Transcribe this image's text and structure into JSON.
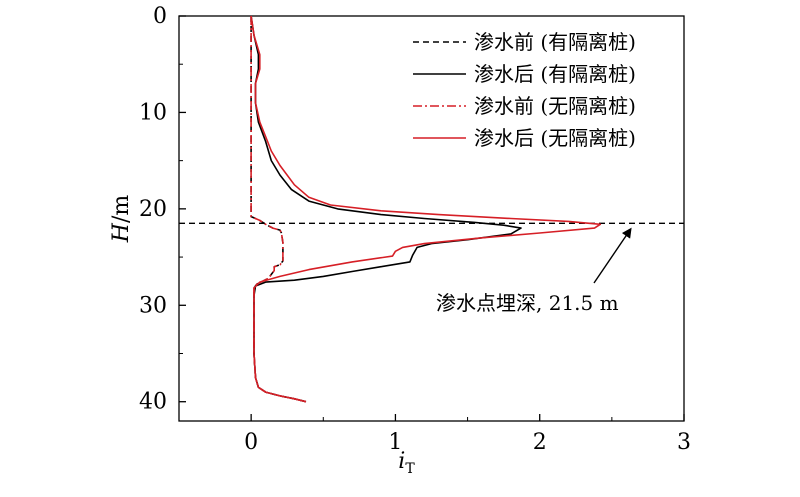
{
  "chart_data": {
    "type": "line",
    "title": "",
    "xlabel": {
      "main": "i",
      "sub": "T"
    },
    "ylabel": {
      "main": "H",
      "unit": "/m"
    },
    "xlim": [
      -0.5,
      3
    ],
    "ylim": [
      0,
      42
    ],
    "y_inverted": true,
    "xticks": [
      0,
      1,
      2,
      3
    ],
    "yticks": [
      0,
      10,
      20,
      30,
      40
    ],
    "grid": false,
    "legend_position": "top-right",
    "series": [
      {
        "name": "渗水前 (有隔离桩)",
        "color": "#000000",
        "dash": "dashed",
        "points": [
          [
            0.0,
            0
          ],
          [
            0.0,
            5
          ],
          [
            0.0,
            10
          ],
          [
            0.0,
            15
          ],
          [
            0.0,
            20
          ],
          [
            0.0,
            20.8
          ],
          [
            0.06,
            21.2
          ],
          [
            0.1,
            21.6
          ],
          [
            0.15,
            22.0
          ],
          [
            0.2,
            22.2
          ],
          [
            0.21,
            22.5
          ],
          [
            0.22,
            23.5
          ],
          [
            0.22,
            24.5
          ],
          [
            0.22,
            25.4
          ],
          [
            0.2,
            25.8
          ],
          [
            0.16,
            26.0
          ],
          [
            0.16,
            26.4
          ],
          [
            0.14,
            26.8
          ],
          [
            0.12,
            27.2
          ],
          [
            0.08,
            27.5
          ],
          [
            0.04,
            27.8
          ],
          [
            0.02,
            28.2
          ],
          [
            0.02,
            29
          ],
          [
            0.02,
            32
          ],
          [
            0.02,
            35
          ],
          [
            0.03,
            37.5
          ],
          [
            0.05,
            38.5
          ],
          [
            0.1,
            39.0
          ],
          [
            0.2,
            39.4
          ],
          [
            0.3,
            39.7
          ],
          [
            0.38,
            40.0
          ]
        ]
      },
      {
        "name": "渗水后 (有隔离桩)",
        "color": "#000000",
        "dash": "solid",
        "points": [
          [
            0.0,
            0
          ],
          [
            0.02,
            2
          ],
          [
            0.05,
            4
          ],
          [
            0.05,
            5.5
          ],
          [
            0.03,
            7
          ],
          [
            0.03,
            9
          ],
          [
            0.05,
            11
          ],
          [
            0.1,
            13
          ],
          [
            0.14,
            15
          ],
          [
            0.2,
            16.5
          ],
          [
            0.28,
            18
          ],
          [
            0.4,
            19.2
          ],
          [
            0.6,
            20.0
          ],
          [
            0.9,
            20.6
          ],
          [
            1.2,
            21.0
          ],
          [
            1.55,
            21.4
          ],
          [
            1.75,
            21.7
          ],
          [
            1.87,
            22.0
          ],
          [
            1.8,
            22.6
          ],
          [
            1.5,
            23.2
          ],
          [
            1.25,
            23.6
          ],
          [
            1.15,
            24.0
          ],
          [
            1.12,
            24.8
          ],
          [
            1.1,
            25.5
          ],
          [
            0.9,
            26.0
          ],
          [
            0.7,
            26.5
          ],
          [
            0.5,
            27.0
          ],
          [
            0.3,
            27.4
          ],
          [
            0.1,
            27.6
          ],
          [
            0.03,
            28.0
          ],
          [
            0.02,
            29
          ],
          [
            0.02,
            32
          ],
          [
            0.02,
            35
          ],
          [
            0.03,
            37.5
          ],
          [
            0.05,
            38.5
          ],
          [
            0.1,
            39.0
          ],
          [
            0.2,
            39.4
          ],
          [
            0.3,
            39.7
          ],
          [
            0.38,
            40.0
          ]
        ]
      },
      {
        "name": "渗水前 (无隔离桩)",
        "color": "#d61f26",
        "dash": "dashdot",
        "points": [
          [
            0.0,
            0
          ],
          [
            0.0,
            5
          ],
          [
            0.0,
            10
          ],
          [
            0.0,
            15
          ],
          [
            0.0,
            20
          ],
          [
            0.0,
            20.8
          ],
          [
            0.06,
            21.2
          ],
          [
            0.1,
            21.6
          ],
          [
            0.15,
            22.0
          ],
          [
            0.2,
            22.2
          ],
          [
            0.21,
            22.5
          ],
          [
            0.22,
            23.5
          ],
          [
            0.22,
            24.5
          ],
          [
            0.22,
            25.4
          ],
          [
            0.2,
            25.8
          ],
          [
            0.16,
            26.0
          ],
          [
            0.16,
            26.4
          ],
          [
            0.14,
            26.8
          ],
          [
            0.12,
            27.2
          ],
          [
            0.08,
            27.5
          ],
          [
            0.04,
            27.8
          ],
          [
            0.02,
            28.2
          ],
          [
            0.02,
            29
          ],
          [
            0.02,
            32
          ],
          [
            0.02,
            35
          ],
          [
            0.03,
            37.5
          ],
          [
            0.05,
            38.5
          ],
          [
            0.1,
            39.0
          ],
          [
            0.2,
            39.4
          ],
          [
            0.3,
            39.7
          ],
          [
            0.38,
            40.0
          ]
        ]
      },
      {
        "name": "渗水后 (无隔离桩)",
        "color": "#d61f26",
        "dash": "solid",
        "points": [
          [
            0.0,
            0
          ],
          [
            0.02,
            2
          ],
          [
            0.06,
            4
          ],
          [
            0.06,
            5.5
          ],
          [
            0.03,
            7
          ],
          [
            0.03,
            9
          ],
          [
            0.06,
            11
          ],
          [
            0.1,
            12.5
          ],
          [
            0.14,
            14
          ],
          [
            0.2,
            15.5
          ],
          [
            0.3,
            17.5
          ],
          [
            0.4,
            18.8
          ],
          [
            0.55,
            19.6
          ],
          [
            0.9,
            20.2
          ],
          [
            1.3,
            20.6
          ],
          [
            1.8,
            21.0
          ],
          [
            2.2,
            21.3
          ],
          [
            2.42,
            21.6
          ],
          [
            2.38,
            22.0
          ],
          [
            2.0,
            22.5
          ],
          [
            1.6,
            23.0
          ],
          [
            1.2,
            23.6
          ],
          [
            1.05,
            24.0
          ],
          [
            1.0,
            24.4
          ],
          [
            0.98,
            24.9
          ],
          [
            0.7,
            25.5
          ],
          [
            0.4,
            26.3
          ],
          [
            0.2,
            27.0
          ],
          [
            0.06,
            27.6
          ],
          [
            0.02,
            28.2
          ],
          [
            0.02,
            29
          ],
          [
            0.02,
            32
          ],
          [
            0.02,
            35
          ],
          [
            0.03,
            37.5
          ],
          [
            0.05,
            38.5
          ],
          [
            0.1,
            39.0
          ],
          [
            0.2,
            39.4
          ],
          [
            0.3,
            39.7
          ],
          [
            0.38,
            40.0
          ]
        ]
      }
    ],
    "reference_line": {
      "y": 21.5,
      "color": "#000000",
      "dash": "dashed"
    },
    "annotation": {
      "text": "渗水点埋深, 21.5 m",
      "arrow_to": [
        2.65,
        21.6
      ],
      "text_anchor": [
        1.3,
        30.0
      ]
    }
  }
}
